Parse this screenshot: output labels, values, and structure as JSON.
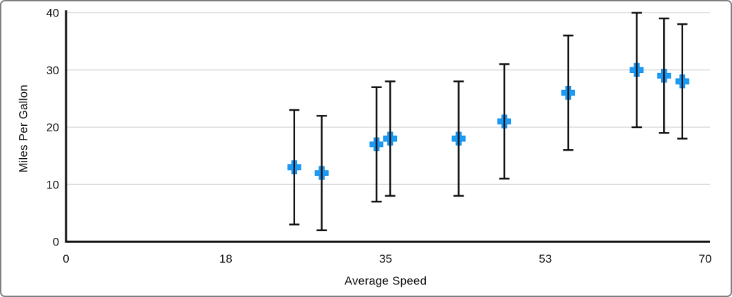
{
  "frame": {
    "background": "#ffffff",
    "border_color": "#7f7f7f"
  },
  "chart_data": {
    "type": "scatter",
    "title": "",
    "xlabel": "Average Speed",
    "ylabel": "Miles Per Gallon",
    "xlim": [
      0,
      70
    ],
    "ylim": [
      0,
      40
    ],
    "grid": "horizontal",
    "legend": "none",
    "x_ticks": [
      {
        "value": 0,
        "label": "0"
      },
      {
        "value": 17.5,
        "label": "18"
      },
      {
        "value": 35,
        "label": "35"
      },
      {
        "value": 52.5,
        "label": "53"
      },
      {
        "value": 70,
        "label": "70"
      }
    ],
    "y_ticks": [
      {
        "value": 0,
        "label": "0"
      },
      {
        "value": 10,
        "label": "10"
      },
      {
        "value": 20,
        "label": "20"
      },
      {
        "value": 30,
        "label": "30"
      },
      {
        "value": 40,
        "label": "40"
      }
    ],
    "marker": {
      "shape": "plus",
      "color": "#1B9AF6",
      "size": 19
    },
    "error_bars": {
      "plus_minus": 10,
      "color": "#111111"
    },
    "colors": {
      "axis": "#111111",
      "gridline": "#dcdcdc",
      "text": "#111111"
    },
    "points": [
      {
        "x": 25,
        "y": 13,
        "y_low": 3,
        "y_high": 23
      },
      {
        "x": 28,
        "y": 12,
        "y_low": 2,
        "y_high": 22
      },
      {
        "x": 34,
        "y": 17,
        "y_low": 7,
        "y_high": 27
      },
      {
        "x": 35.5,
        "y": 18,
        "y_low": 8,
        "y_high": 28
      },
      {
        "x": 43,
        "y": 18,
        "y_low": 8,
        "y_high": 28
      },
      {
        "x": 48,
        "y": 21,
        "y_low": 11,
        "y_high": 31
      },
      {
        "x": 55,
        "y": 26,
        "y_low": 16,
        "y_high": 36
      },
      {
        "x": 62.5,
        "y": 30,
        "y_low": 20,
        "y_high": 40
      },
      {
        "x": 65.5,
        "y": 29,
        "y_low": 19,
        "y_high": 39
      },
      {
        "x": 67.5,
        "y": 28,
        "y_low": 18,
        "y_high": 38
      }
    ]
  }
}
